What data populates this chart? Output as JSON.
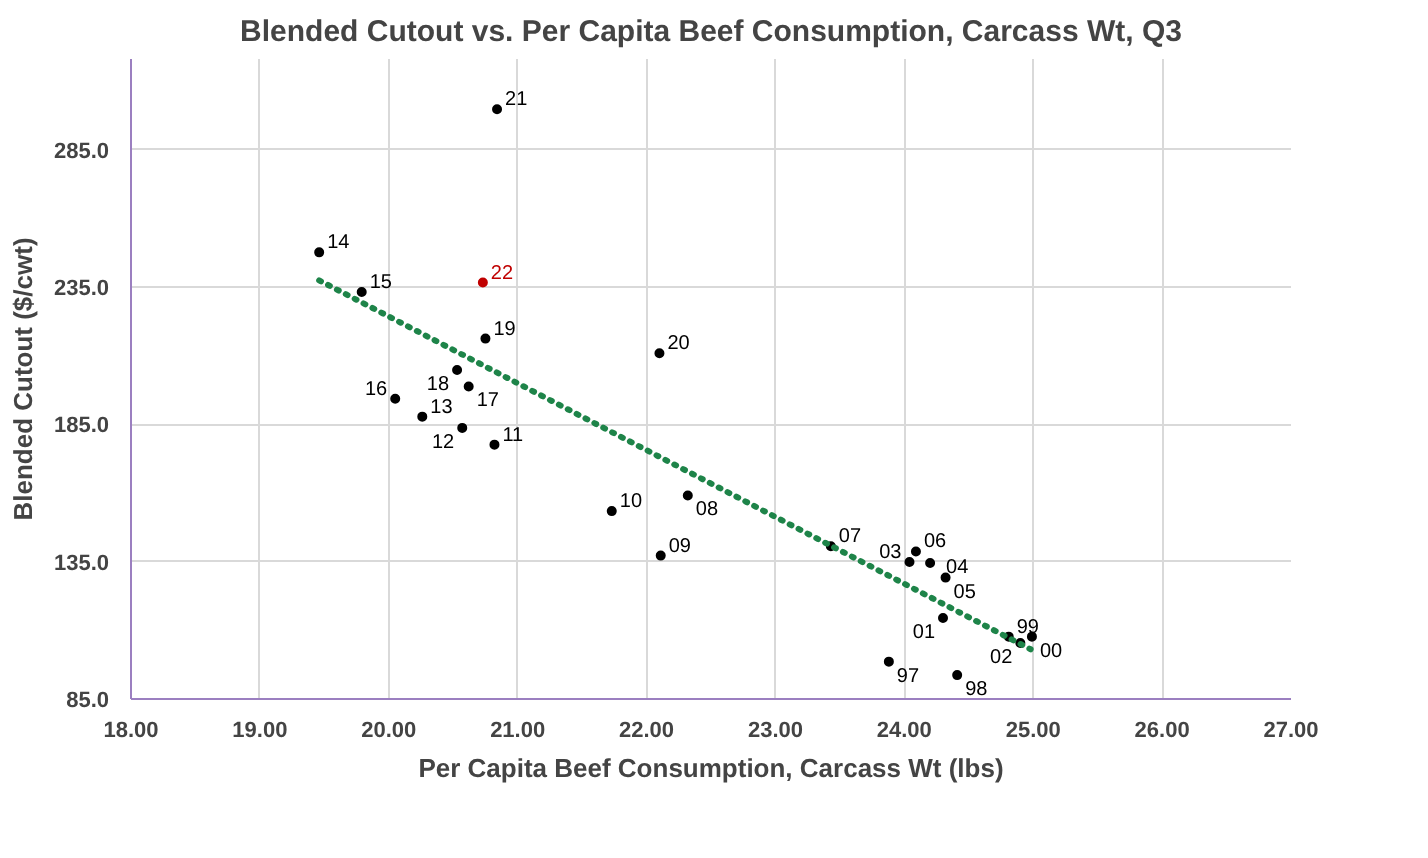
{
  "chart_data": {
    "type": "scatter",
    "title": "Blended Cutout vs. Per Capita Beef Consumption, Carcass Wt, Q3",
    "xlabel": "Per Capita Beef Consumption, Carcass Wt (lbs)",
    "ylabel": "Blended Cutout ($/cwt)",
    "xlim": [
      18,
      27
    ],
    "ylim": [
      85,
      318
    ],
    "xticks": [
      {
        "value": 18,
        "label": "18.00"
      },
      {
        "value": 19,
        "label": "19.00"
      },
      {
        "value": 20,
        "label": "20.00"
      },
      {
        "value": 21,
        "label": "21.00"
      },
      {
        "value": 22,
        "label": "22.00"
      },
      {
        "value": 23,
        "label": "23.00"
      },
      {
        "value": 24,
        "label": "24.00"
      },
      {
        "value": 25,
        "label": "25.00"
      },
      {
        "value": 26,
        "label": "26.00"
      },
      {
        "value": 27,
        "label": "27.00"
      }
    ],
    "yticks": [
      {
        "value": 85,
        "label": "85.0"
      },
      {
        "value": 135,
        "label": "135.0"
      },
      {
        "value": 185,
        "label": "185.0"
      },
      {
        "value": 235,
        "label": "235.0"
      },
      {
        "value": 285,
        "label": "285.0"
      }
    ],
    "grid": true,
    "series": [
      {
        "marker": "circle",
        "x": [
          20.84,
          19.46,
          19.79,
          20.73,
          20.75,
          22.1,
          20.53,
          20.62,
          20.05,
          20.26,
          20.57,
          20.82,
          21.73,
          22.32,
          22.11,
          23.43,
          24.09,
          24.04,
          24.2,
          24.32,
          24.3,
          24.81,
          24.9,
          24.99,
          23.88,
          24.41
        ],
        "values": [
          299.7,
          247.6,
          233.2,
          236.6,
          216.2,
          210.9,
          204.8,
          198.8,
          194.3,
          187.8,
          183.7,
          177.6,
          153.4,
          159.1,
          137.2,
          140.6,
          138.7,
          134.9,
          134.5,
          129.2,
          114.5,
          107.7,
          105.4,
          107.7,
          98.6,
          93.7
        ],
        "colors": [
          "#000000",
          "#000000",
          "#000000",
          "#c00000",
          "#000000",
          "#000000",
          "#000000",
          "#000000",
          "#000000",
          "#000000",
          "#000000",
          "#000000",
          "#000000",
          "#000000",
          "#000000",
          "#000000",
          "#000000",
          "#000000",
          "#000000",
          "#000000",
          "#000000",
          "#000000",
          "#000000",
          "#000000",
          "#000000",
          "#000000"
        ]
      },
      {
        "type": "line",
        "x": [
          19.46,
          24.98
        ],
        "values": [
          237.4,
          103.1
        ],
        "color": "#1e8449",
        "line_style": "dotted"
      }
    ],
    "annotations": [
      {
        "text": "21",
        "x": 20.84,
        "y": 299.7
      },
      {
        "text": "14",
        "x": 19.46,
        "y": 247.6
      },
      {
        "text": "15",
        "x": 19.79,
        "y": 233.2
      },
      {
        "text": "22",
        "x": 20.73,
        "y": 236.6
      },
      {
        "text": "19",
        "x": 20.75,
        "y": 216.2
      },
      {
        "text": "20",
        "x": 22.1,
        "y": 210.9
      },
      {
        "text": "18",
        "x": 20.53,
        "y": 204.8
      },
      {
        "text": "17",
        "x": 20.62,
        "y": 198.8
      },
      {
        "text": "16",
        "x": 20.05,
        "y": 194.3
      },
      {
        "text": "13",
        "x": 20.26,
        "y": 187.8
      },
      {
        "text": "12",
        "x": 20.57,
        "y": 183.7
      },
      {
        "text": "11",
        "x": 20.82,
        "y": 177.6
      },
      {
        "text": "10",
        "x": 21.73,
        "y": 153.4
      },
      {
        "text": "08",
        "x": 22.32,
        "y": 159.1
      },
      {
        "text": "09",
        "x": 22.11,
        "y": 137.2
      },
      {
        "text": "07",
        "x": 23.43,
        "y": 140.6
      },
      {
        "text": "06",
        "x": 24.09,
        "y": 138.7
      },
      {
        "text": "03",
        "x": 24.04,
        "y": 134.9
      },
      {
        "text": "04",
        "x": 24.2,
        "y": 134.5
      },
      {
        "text": "05",
        "x": 24.32,
        "y": 129.2
      },
      {
        "text": "01",
        "x": 24.3,
        "y": 114.5
      },
      {
        "text": "99",
        "x": 24.81,
        "y": 107.7
      },
      {
        "text": "02",
        "x": 24.9,
        "y": 105.4
      },
      {
        "text": "00",
        "x": 24.99,
        "y": 107.7
      },
      {
        "text": "97",
        "x": 23.88,
        "y": 98.6
      },
      {
        "text": "98",
        "x": 24.41,
        "y": 93.7
      }
    ]
  }
}
